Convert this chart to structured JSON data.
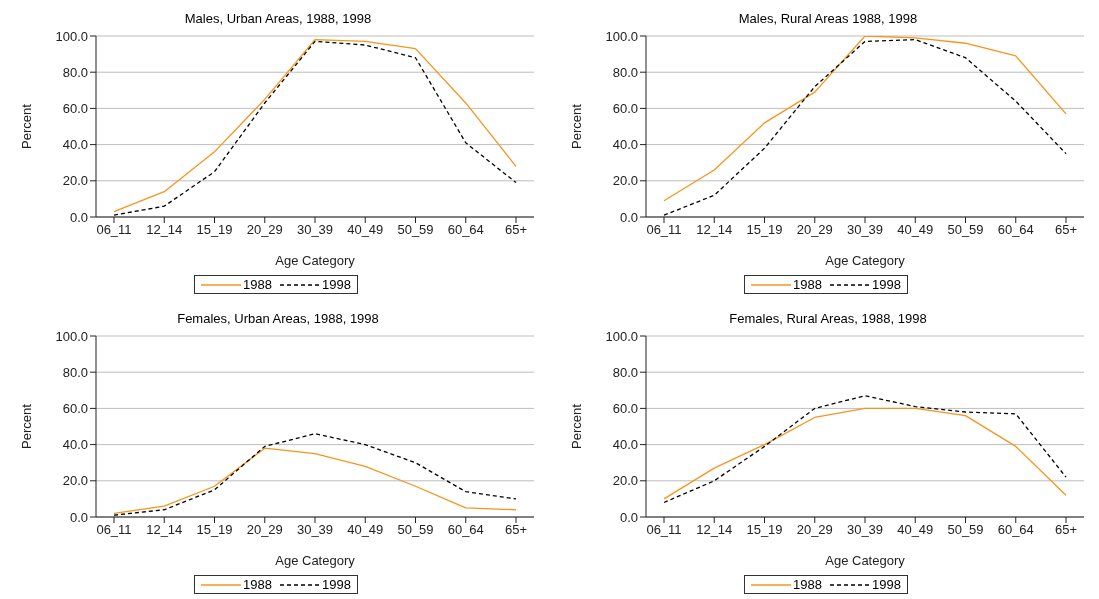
{
  "chart_data": [
    {
      "type": "line",
      "title": "Males, Urban Areas, 1988, 1998",
      "xlabel": "Age Category",
      "ylabel": "Percent",
      "categories": [
        "06_11",
        "12_14",
        "15_19",
        "20_29",
        "30_39",
        "40_49",
        "50_59",
        "60_64",
        "65+"
      ],
      "ylim": [
        0,
        100
      ],
      "yticks": [
        {
          "value": 0,
          "label": "0.0"
        },
        {
          "value": 20,
          "label": "20.0"
        },
        {
          "value": 40,
          "label": "40.0"
        },
        {
          "value": 60,
          "label": "60.0"
        },
        {
          "value": 80,
          "label": "80.0"
        },
        {
          "value": 100,
          "label": "100.0"
        }
      ],
      "grid": "y",
      "legend": "bottom",
      "marker": "none",
      "series": [
        {
          "name": "1988",
          "color": "#f7941d",
          "line_style": "solid",
          "values": [
            3,
            14,
            36,
            65,
            98,
            97,
            93,
            63,
            28
          ]
        },
        {
          "name": "1998",
          "color": "#000000",
          "line_style": "dashed",
          "values": [
            1,
            6,
            25,
            63,
            97,
            95,
            88,
            41,
            19
          ]
        }
      ]
    },
    {
      "type": "line",
      "title": "Males, Rural Areas 1988, 1998",
      "xlabel": "Age Category",
      "ylabel": "Percent",
      "categories": [
        "06_11",
        "12_14",
        "15_19",
        "20_29",
        "30_39",
        "40_49",
        "50_59",
        "60_64",
        "65+"
      ],
      "ylim": [
        0,
        100
      ],
      "yticks": [
        {
          "value": 0,
          "label": "0.0"
        },
        {
          "value": 20,
          "label": "20.0"
        },
        {
          "value": 40,
          "label": "40.0"
        },
        {
          "value": 60,
          "label": "60.0"
        },
        {
          "value": 80,
          "label": "80.0"
        },
        {
          "value": 100,
          "label": "100.0"
        }
      ],
      "grid": "y",
      "legend": "bottom",
      "marker": "none",
      "series": [
        {
          "name": "1988",
          "color": "#f7941d",
          "line_style": "solid",
          "values": [
            9,
            26,
            52,
            69,
            100,
            99,
            96,
            89,
            57
          ]
        },
        {
          "name": "1998",
          "color": "#000000",
          "line_style": "dashed",
          "values": [
            1,
            12,
            38,
            72,
            97,
            98,
            88,
            64,
            35
          ]
        }
      ]
    },
    {
      "type": "line",
      "title": "Females, Urban Areas, 1988, 1998",
      "xlabel": "Age Category",
      "ylabel": "Percent",
      "categories": [
        "06_11",
        "12_14",
        "15_19",
        "20_29",
        "30_39",
        "40_49",
        "50_59",
        "60_64",
        "65+"
      ],
      "ylim": [
        0,
        100
      ],
      "yticks": [
        {
          "value": 0,
          "label": "0.0"
        },
        {
          "value": 20,
          "label": "20.0"
        },
        {
          "value": 40,
          "label": "40.0"
        },
        {
          "value": 60,
          "label": "60.0"
        },
        {
          "value": 80,
          "label": "80.0"
        },
        {
          "value": 100,
          "label": "100.0"
        }
      ],
      "grid": "y",
      "legend": "bottom",
      "marker": "none",
      "series": [
        {
          "name": "1988",
          "color": "#f7941d",
          "line_style": "solid",
          "values": [
            2,
            6,
            17,
            38,
            35,
            28,
            17,
            5,
            4
          ]
        },
        {
          "name": "1998",
          "color": "#000000",
          "line_style": "dashed",
          "values": [
            1,
            4,
            15,
            39,
            46,
            40,
            30,
            14,
            10
          ]
        }
      ]
    },
    {
      "type": "line",
      "title": "Females, Rural Areas, 1988, 1998",
      "xlabel": "Age Category",
      "ylabel": "Percent",
      "categories": [
        "06_11",
        "12_14",
        "15_19",
        "20_29",
        "30_39",
        "40_49",
        "50_59",
        "60_64",
        "65+"
      ],
      "ylim": [
        0,
        100
      ],
      "yticks": [
        {
          "value": 0,
          "label": "0.0"
        },
        {
          "value": 20,
          "label": "20.0"
        },
        {
          "value": 40,
          "label": "40.0"
        },
        {
          "value": 60,
          "label": "60.0"
        },
        {
          "value": 80,
          "label": "80.0"
        },
        {
          "value": 100,
          "label": "100.0"
        }
      ],
      "grid": "y",
      "legend": "bottom",
      "marker": "none",
      "series": [
        {
          "name": "1988",
          "color": "#f7941d",
          "line_style": "solid",
          "values": [
            10,
            27,
            40,
            55,
            60,
            60,
            56,
            39,
            12
          ]
        },
        {
          "name": "1998",
          "color": "#000000",
          "line_style": "dashed",
          "values": [
            8,
            20,
            39,
            60,
            67,
            61,
            58,
            57,
            22
          ]
        }
      ]
    }
  ]
}
